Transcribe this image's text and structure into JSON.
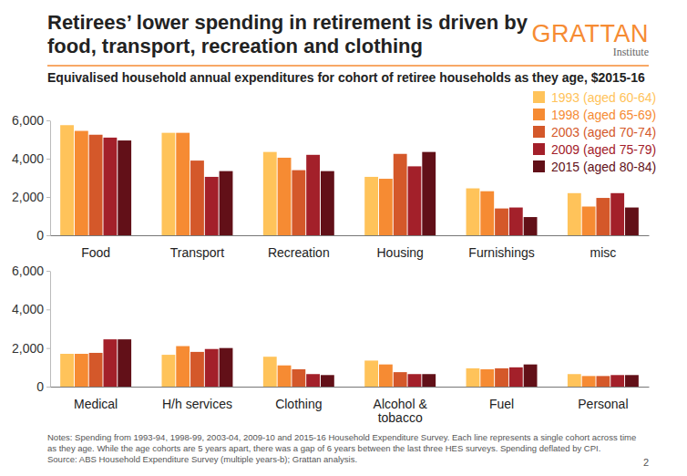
{
  "chart_data": [
    {
      "type": "bar",
      "title": "Retirees’ lower spending in retirement is driven by food, transport, recreation and clothing",
      "subtitle": "Equivalised household annual expenditures for cohort of retiree households as they age, $2015-16",
      "annotations": [
        "GRATTAN",
        "Institute",
        "Notes: Spending from 1993-94, 1998-99, 2003-04, 2009-10 and 2015-16 Household Expenditure Survey. Each line represents a single cohort across time as they age. While the age cohorts are 5 years apart, there was a gap of 6 years between the last three HES surveys. Spending deflated by CPI.",
        "Source: ABS Household Expenditure Survey (multiple years-b); Grattan analysis.",
        "2"
      ],
      "categories": [
        "Food",
        "Transport",
        "Recreation",
        "Housing",
        "Furnishings",
        "misc"
      ],
      "series": [
        {
          "name": "1993 (aged 60-64)",
          "color": "#FFC35A",
          "values": [
            5750,
            5350,
            4350,
            3050,
            2450,
            2200
          ]
        },
        {
          "name": "1998 (aged 65-69)",
          "color": "#F68B33",
          "values": [
            5450,
            5350,
            4050,
            2950,
            2300,
            1500
          ]
        },
        {
          "name": "2003 (aged 70-74)",
          "color": "#D4582A",
          "values": [
            5250,
            3900,
            3400,
            4250,
            1400,
            1950
          ]
        },
        {
          "name": "2009 (aged 75-79)",
          "color": "#A3202A",
          "values": [
            5100,
            3050,
            4200,
            3600,
            1450,
            2200
          ]
        },
        {
          "name": "2015 (aged 80-84)",
          "color": "#621018",
          "values": [
            4950,
            3350,
            3350,
            4350,
            950,
            1450
          ]
        }
      ],
      "ylim": [
        0,
        6000
      ],
      "yticks": [
        0,
        {
          "value": 2000,
          "label": "2,000"
        },
        {
          "value": 4000,
          "label": "4,000"
        },
        {
          "value": 6000,
          "label": "6,000"
        }
      ],
      "grid": false,
      "legend": "top-right"
    },
    {
      "type": "bar",
      "categories": [
        "Medical",
        "H/h services",
        "Clothing",
        "Alcohol & tobacco",
        "Fuel",
        "Personal"
      ],
      "series": [
        {
          "color": "#FFC35A",
          "values": [
            1700,
            1650,
            1550,
            1350,
            950,
            650
          ]
        },
        {
          "color": "#F68B33",
          "values": [
            1700,
            2100,
            1100,
            1150,
            900,
            550
          ]
        },
        {
          "color": "#D4582A",
          "values": [
            1750,
            1800,
            900,
            750,
            950,
            550
          ]
        },
        {
          "color": "#A3202A",
          "values": [
            2450,
            1950,
            650,
            650,
            1000,
            600
          ]
        },
        {
          "color": "#621018",
          "values": [
            2450,
            2000,
            600,
            650,
            1150,
            600
          ]
        }
      ],
      "ylim": [
        0,
        6000
      ],
      "yticks": [
        0,
        {
          "value": 2000,
          "label": "2,000"
        },
        {
          "value": 4000,
          "label": "4,000"
        },
        {
          "value": 6000,
          "label": "6,000"
        }
      ],
      "grid": false
    }
  ]
}
